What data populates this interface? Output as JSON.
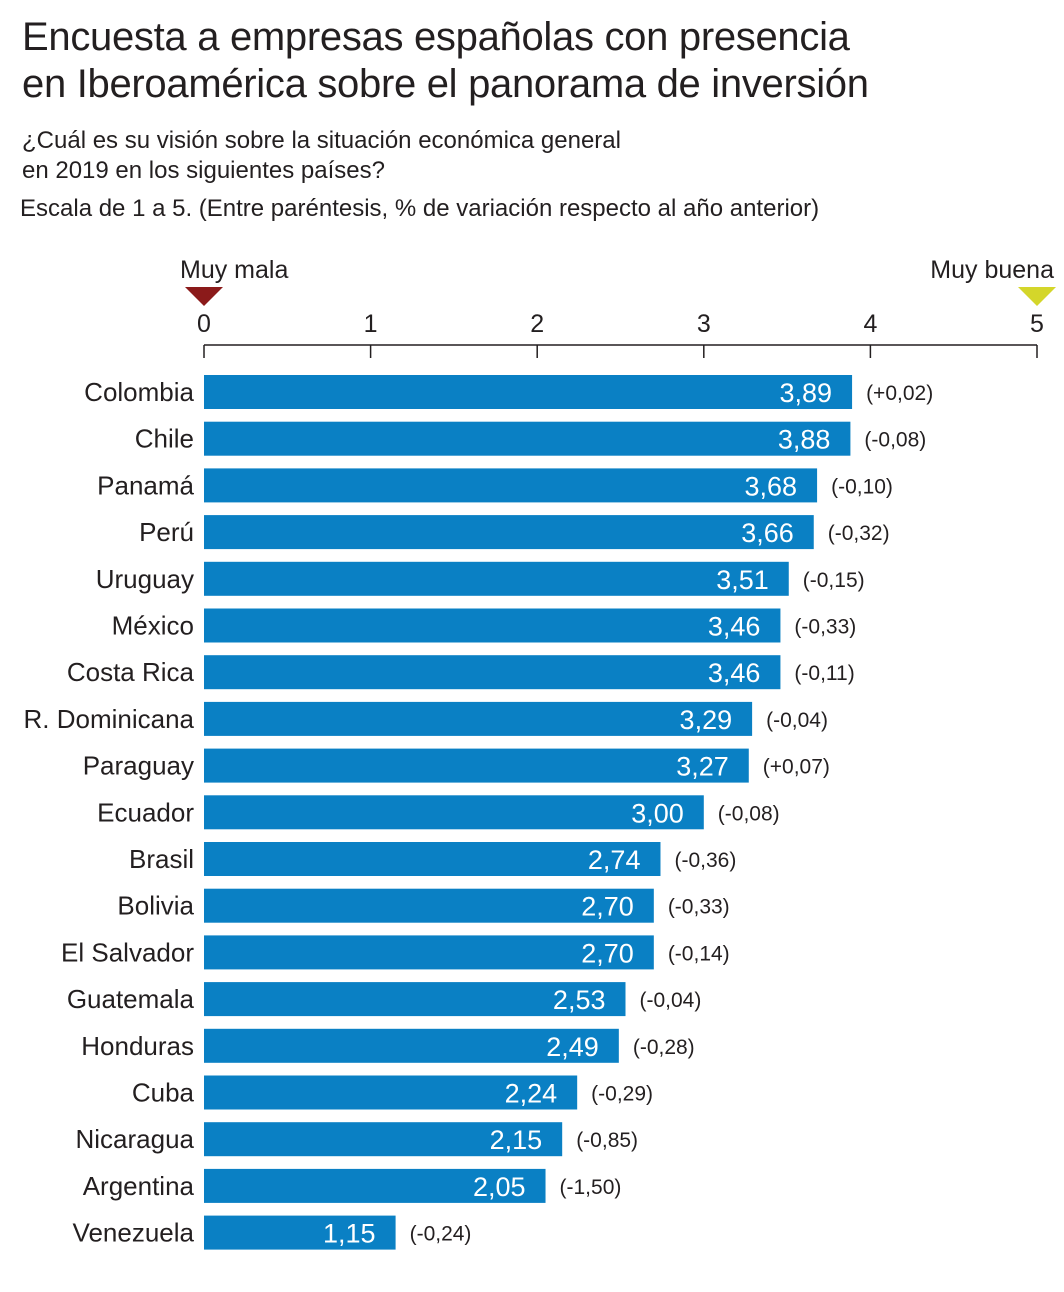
{
  "title_lines": [
    "Encuesta a empresas españolas con presencia",
    "en Iberoamérica sobre el panorama de inversión"
  ],
  "subtitle_lines": [
    "¿Cuál es su visión sobre la situación económica general",
    "en 2019 en los siguientes países?"
  ],
  "scale_note": "Escala de 1 a 5. (Entre paréntesis, % de variación respecto al año anterior)",
  "colors": {
    "bar": "#0a80c4",
    "bar_label": "#ffffff",
    "text": "#231f20",
    "low_marker": "#8b1a1a",
    "high_marker": "#d4d62a"
  },
  "chart_data": {
    "type": "bar",
    "orientation": "horizontal",
    "xlim": [
      0,
      5
    ],
    "x_ticks": [
      "0",
      "1",
      "2",
      "3",
      "4",
      "5"
    ],
    "scale_low_label": "Muy mala",
    "scale_high_label": "Muy buena",
    "grid": false,
    "categories": [
      "Colombia",
      "Chile",
      "Panamá",
      "Perú",
      "Uruguay",
      "México",
      "Costa Rica",
      "R. Dominicana",
      "Paraguay",
      "Ecuador",
      "Brasil",
      "Bolivia",
      "El Salvador",
      "Guatemala",
      "Honduras",
      "Cuba",
      "Nicaragua",
      "Argentina",
      "Venezuela"
    ],
    "values": [
      3.89,
      3.88,
      3.68,
      3.66,
      3.51,
      3.46,
      3.46,
      3.29,
      3.27,
      3.0,
      2.74,
      2.7,
      2.7,
      2.53,
      2.49,
      2.24,
      2.15,
      2.05,
      1.15
    ],
    "value_labels": [
      "3,89",
      "3,88",
      "3,68",
      "3,66",
      "3,51",
      "3,46",
      "3,46",
      "3,29",
      "3,27",
      "3,00",
      "2,74",
      "2,70",
      "2,70",
      "2,53",
      "2,49",
      "2,24",
      "2,15",
      "2,05",
      "1,15"
    ],
    "changes": [
      0.02,
      -0.08,
      -0.1,
      -0.32,
      -0.15,
      -0.33,
      -0.11,
      -0.04,
      0.07,
      -0.08,
      -0.36,
      -0.33,
      -0.14,
      -0.04,
      -0.28,
      -0.29,
      -0.85,
      -1.5,
      -0.24
    ],
    "change_labels": [
      "(+0,02)",
      "(-0,08)",
      "(-0,10)",
      "(-0,32)",
      "(-0,15)",
      "(-0,33)",
      "(-0,11)",
      "(-0,04)",
      "(+0,07)",
      "(-0,08)",
      "(-0,36)",
      "(-0,33)",
      "(-0,14)",
      "(-0,04)",
      "(-0,28)",
      "(-0,29)",
      "(-0,85)",
      "(-1,50)",
      "(-0,24)"
    ]
  }
}
